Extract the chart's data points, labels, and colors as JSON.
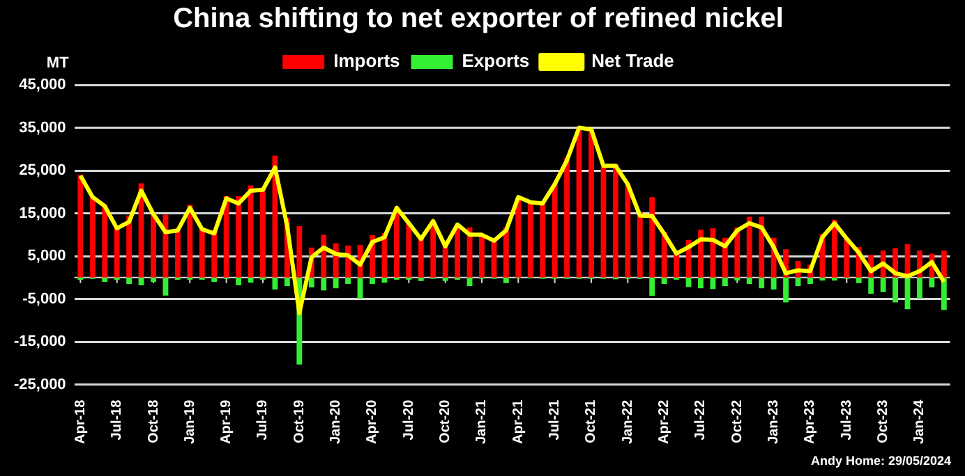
{
  "chart_data": {
    "type": "bar",
    "title": "China shifting to net exporter of refined nickel",
    "ylabel": "MT",
    "categories": [
      "Apr-18",
      null,
      null,
      "Jul-18",
      null,
      null,
      "Oct-18",
      null,
      null,
      "Jan-19",
      null,
      null,
      "Apr-19",
      null,
      null,
      "Jul-19",
      null,
      null,
      "Oct-19",
      null,
      null,
      "Jan-20",
      null,
      null,
      "Apr-20",
      null,
      null,
      "Jul-20",
      null,
      null,
      "Oct-20",
      null,
      null,
      "Jan-21",
      null,
      null,
      "Apr-21",
      null,
      null,
      "Jul-21",
      null,
      null,
      "Oct-21",
      null,
      null,
      "Jan-22",
      null,
      null,
      "Apr-22",
      null,
      null,
      "Jul-22",
      null,
      null,
      "Oct-22",
      null,
      null,
      "Jan-23",
      null,
      null,
      "Apr-23",
      null,
      null,
      "Jul-23",
      null,
      null,
      "Oct-23",
      null,
      null,
      "Jan-24",
      null,
      null
    ],
    "stacked": true,
    "series": [
      {
        "name": "Imports",
        "color": "#ff0000",
        "values": [
          24000,
          19000,
          17000,
          12000,
          14500,
          22000,
          15000,
          14700,
          11000,
          17000,
          11500,
          11000,
          19000,
          19000,
          21500,
          21000,
          28500,
          14000,
          12000,
          7000,
          10000,
          8000,
          7500,
          7600,
          9900,
          10400,
          16300,
          12700,
          9100,
          13200,
          7300,
          12200,
          11700,
          10200,
          8600,
          11700,
          18800,
          17800,
          17300,
          22000,
          28000,
          34800,
          34600,
          25900,
          26500,
          21800,
          15200,
          18800,
          10700,
          6000,
          8800,
          11200,
          11500,
          9300,
          11700,
          14200,
          14200,
          9300,
          6600,
          3900,
          3000,
          10200,
          13500,
          9300,
          7100,
          5300,
          6300,
          6900,
          7800,
          6300,
          5600,
          6300
        ]
      },
      {
        "name": "Exports",
        "color": "#33ee33",
        "values": [
          -500,
          -300,
          -1000,
          -500,
          -1500,
          -1800,
          -1000,
          -4200,
          -500,
          -500,
          -500,
          -1000,
          -300,
          -1800,
          -1200,
          -500,
          -2800,
          -2000,
          -20300,
          -2300,
          -3000,
          -2500,
          -1500,
          -4900,
          -1500,
          -1200,
          -500,
          -500,
          -800,
          -300,
          -800,
          -500,
          -2000,
          -300,
          -300,
          -1300,
          -200,
          -200,
          -300,
          -300,
          -300,
          -300,
          -300,
          -300,
          -400,
          -300,
          -300,
          -4300,
          -1500,
          -500,
          -2200,
          -2500,
          -2700,
          -2000,
          -700,
          -1500,
          -2500,
          -2800,
          -5800,
          -2000,
          -1500,
          -700,
          -700,
          -300,
          -1300,
          -3800,
          -3400,
          -5800,
          -7400,
          -4900,
          -2300,
          -7600
        ]
      },
      {
        "name": "Net Trade",
        "type": "line",
        "color": "#ffff00",
        "values": [
          23800,
          18800,
          16700,
          11500,
          13000,
          20300,
          14800,
          10600,
          11000,
          16300,
          11300,
          10300,
          18500,
          17300,
          20300,
          20500,
          25700,
          12000,
          -8300,
          4700,
          7000,
          5500,
          5200,
          3000,
          8300,
          9400,
          16300,
          12700,
          9000,
          13200,
          7300,
          12400,
          10000,
          10000,
          8600,
          11000,
          18800,
          17600,
          17300,
          21800,
          27400,
          35000,
          34600,
          26100,
          26100,
          21800,
          14500,
          14400,
          10200,
          5600,
          7100,
          8900,
          8800,
          7300,
          11000,
          12700,
          11700,
          7100,
          1000,
          1700,
          1500,
          9400,
          12700,
          9100,
          5800,
          1500,
          3300,
          1000,
          300,
          1500,
          3600,
          -1000
        ]
      }
    ],
    "ylim": [
      -25000,
      45000
    ],
    "yticks": [
      {
        "value": -25000,
        "label": "-25,000"
      },
      {
        "value": -15000,
        "label": "-15,000"
      },
      {
        "value": -5000,
        "label": "-5,000"
      },
      {
        "value": 5000,
        "label": "5,000"
      },
      {
        "value": 15000,
        "label": "15,000"
      },
      {
        "value": 25000,
        "label": "25,000"
      },
      {
        "value": 35000,
        "label": "35,000"
      },
      {
        "value": 45000,
        "label": "45,000"
      }
    ],
    "grid": "y",
    "legend": "top",
    "marker": "none",
    "line_style": "solid",
    "annotations": [
      "Andy Home: 29/05/2024"
    ]
  }
}
